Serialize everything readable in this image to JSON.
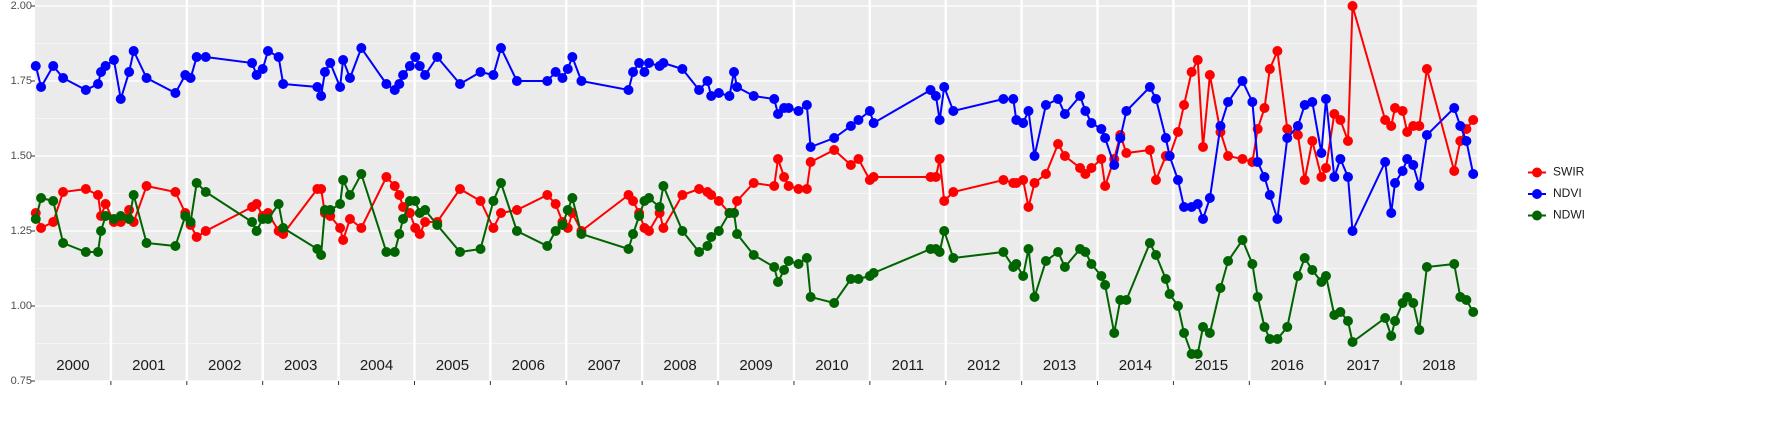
{
  "chart_data": {
    "type": "line",
    "xlim": [
      2000,
      2019
    ],
    "ylim": [
      0.75,
      2.0
    ],
    "yticks": [
      {
        "value": 0.75,
        "label": "0.75"
      },
      {
        "value": 1.0,
        "label": "1.00"
      },
      {
        "value": 1.25,
        "label": "1.25"
      },
      {
        "value": 1.5,
        "label": "1.50"
      },
      {
        "value": 1.75,
        "label": "1.75"
      },
      {
        "value": 2.0,
        "label": "2.00"
      }
    ],
    "xticks": [
      {
        "value": 2000.5,
        "label": "2000"
      },
      {
        "value": 2001.5,
        "label": "2001"
      },
      {
        "value": 2002.5,
        "label": "2002"
      },
      {
        "value": 2003.5,
        "label": "2003"
      },
      {
        "value": 2004.5,
        "label": "2004"
      },
      {
        "value": 2005.5,
        "label": "2005"
      },
      {
        "value": 2006.5,
        "label": "2006"
      },
      {
        "value": 2007.5,
        "label": "2007"
      },
      {
        "value": 2008.5,
        "label": "2008"
      },
      {
        "value": 2009.5,
        "label": "2009"
      },
      {
        "value": 2010.5,
        "label": "2010"
      },
      {
        "value": 2011.5,
        "label": "2011"
      },
      {
        "value": 2012.5,
        "label": "2012"
      },
      {
        "value": 2013.5,
        "label": "2013"
      },
      {
        "value": 2014.5,
        "label": "2014"
      },
      {
        "value": 2015.5,
        "label": "2015"
      },
      {
        "value": 2016.5,
        "label": "2016"
      },
      {
        "value": 2017.5,
        "label": "2017"
      },
      {
        "value": 2018.5,
        "label": "2018"
      }
    ],
    "vlines": [
      2001,
      2002,
      2003,
      2004,
      2005,
      2006,
      2007,
      2008,
      2009,
      2010,
      2011,
      2012,
      2013,
      2014,
      2015,
      2016,
      2017,
      2018
    ],
    "grid": true,
    "legend": "right",
    "x": [
      2000.01,
      2000.08,
      2000.24,
      2000.37,
      2000.67,
      2000.83,
      2000.87,
      2000.93,
      2001.04,
      2001.13,
      2001.24,
      2001.3,
      2001.47,
      2001.85,
      2001.98,
      2002.05,
      2002.13,
      2002.25,
      2002.86,
      2002.92,
      2003.0,
      2003.07,
      2003.21,
      2003.27,
      2003.72,
      2003.77,
      2003.82,
      2003.89,
      2004.02,
      2004.06,
      2004.15,
      2004.3,
      2004.63,
      2004.74,
      2004.8,
      2004.85,
      2004.94,
      2005.01,
      2005.07,
      2005.14,
      2005.3,
      2005.6,
      2005.87,
      2006.04,
      2006.14,
      2006.35,
      2006.75,
      2006.86,
      2006.95,
      2007.02,
      2007.08,
      2007.2,
      2007.82,
      2007.88,
      2007.96,
      2008.03,
      2008.09,
      2008.23,
      2008.28,
      2008.53,
      2008.75,
      2008.86,
      2008.91,
      2009.01,
      2009.15,
      2009.21,
      2009.25,
      2009.47,
      2009.74,
      2009.79,
      2009.87,
      2009.93,
      2010.06,
      2010.17,
      2010.22,
      2010.53,
      2010.75,
      2010.85,
      2011.0,
      2011.05,
      2011.8,
      2011.87,
      2011.92,
      2011.98,
      2012.1,
      2012.76,
      2012.89,
      2012.93,
      2013.02,
      2013.09,
      2013.17,
      2013.32,
      2013.48,
      2013.57,
      2013.77,
      2013.84,
      2013.92,
      2014.05,
      2014.1,
      2014.22,
      2014.3,
      2014.38,
      2014.69,
      2014.77,
      2014.9,
      2014.95,
      2015.06,
      2015.14,
      2015.24,
      2015.32,
      2015.39,
      2015.48,
      2015.62,
      2015.72,
      2015.91,
      2016.04,
      2016.11,
      2016.2,
      2016.27,
      2016.37,
      2016.5,
      2016.64,
      2016.73,
      2016.83,
      2016.95,
      2017.01,
      2017.12,
      2017.2,
      2017.3,
      2017.36,
      2017.79,
      2017.87,
      2017.92,
      2018.02,
      2018.08,
      2018.16,
      2018.24,
      2018.34,
      2018.7,
      2018.78,
      2018.86,
      2018.95
    ],
    "series": [
      {
        "name": "SWIR",
        "color": "#ff0000",
        "values": [
          1.31,
          1.26,
          1.28,
          1.38,
          1.39,
          1.37,
          1.3,
          1.34,
          1.28,
          1.28,
          1.32,
          1.28,
          1.4,
          1.38,
          1.31,
          1.27,
          1.23,
          1.25,
          1.33,
          1.34,
          1.3,
          1.31,
          1.25,
          1.24,
          1.39,
          1.39,
          1.31,
          1.3,
          1.26,
          1.22,
          1.29,
          1.26,
          1.43,
          1.4,
          1.37,
          1.33,
          1.31,
          1.26,
          1.24,
          1.28,
          1.28,
          1.39,
          1.35,
          1.26,
          1.31,
          1.32,
          1.37,
          1.34,
          1.28,
          1.26,
          1.31,
          1.25,
          1.37,
          1.35,
          1.31,
          1.26,
          1.25,
          1.31,
          1.26,
          1.37,
          1.39,
          1.38,
          1.37,
          1.35,
          1.31,
          1.31,
          1.35,
          1.41,
          1.4,
          1.49,
          1.43,
          1.4,
          1.39,
          1.39,
          1.48,
          1.52,
          1.47,
          1.49,
          1.42,
          1.43,
          1.43,
          1.43,
          1.49,
          1.35,
          1.38,
          1.42,
          1.41,
          1.41,
          1.42,
          1.33,
          1.41,
          1.44,
          1.54,
          1.5,
          1.46,
          1.44,
          1.46,
          1.49,
          1.4,
          1.49,
          1.57,
          1.51,
          1.52,
          1.42,
          1.5,
          1.5,
          1.58,
          1.67,
          1.78,
          1.82,
          1.53,
          1.77,
          1.58,
          1.5,
          1.49,
          1.48,
          1.59,
          1.66,
          1.79,
          1.85,
          1.59,
          1.57,
          1.42,
          1.55,
          1.43,
          1.46,
          1.64,
          1.62,
          1.55,
          2.0,
          1.62,
          1.6,
          1.66,
          1.65,
          1.58,
          1.6,
          1.6,
          1.79,
          1.45,
          1.55,
          1.59,
          1.62
        ]
      },
      {
        "name": "NDVI",
        "color": "#0000ff",
        "values": [
          1.8,
          1.73,
          1.8,
          1.76,
          1.72,
          1.74,
          1.78,
          1.8,
          1.82,
          1.69,
          1.78,
          1.85,
          1.76,
          1.71,
          1.77,
          1.76,
          1.83,
          1.83,
          1.81,
          1.77,
          1.79,
          1.85,
          1.83,
          1.74,
          1.73,
          1.7,
          1.78,
          1.81,
          1.73,
          1.82,
          1.76,
          1.86,
          1.74,
          1.72,
          1.74,
          1.77,
          1.8,
          1.83,
          1.8,
          1.77,
          1.83,
          1.74,
          1.78,
          1.77,
          1.86,
          1.75,
          1.75,
          1.78,
          1.76,
          1.79,
          1.83,
          1.75,
          1.72,
          1.78,
          1.81,
          1.78,
          1.81,
          1.8,
          1.81,
          1.79,
          1.72,
          1.75,
          1.7,
          1.71,
          1.7,
          1.78,
          1.73,
          1.7,
          1.69,
          1.64,
          1.66,
          1.66,
          1.65,
          1.67,
          1.53,
          1.56,
          1.6,
          1.62,
          1.65,
          1.61,
          1.72,
          1.7,
          1.62,
          1.73,
          1.65,
          1.69,
          1.69,
          1.62,
          1.61,
          1.65,
          1.5,
          1.67,
          1.69,
          1.64,
          1.7,
          1.65,
          1.61,
          1.59,
          1.56,
          1.47,
          1.56,
          1.65,
          1.73,
          1.69,
          1.56,
          1.5,
          1.42,
          1.33,
          1.33,
          1.34,
          1.29,
          1.36,
          1.6,
          1.68,
          1.75,
          1.68,
          1.48,
          1.43,
          1.37,
          1.29,
          1.56,
          1.6,
          1.67,
          1.68,
          1.51,
          1.69,
          1.43,
          1.49,
          1.43,
          1.25,
          1.48,
          1.31,
          1.41,
          1.45,
          1.49,
          1.47,
          1.4,
          1.57,
          1.66,
          1.6,
          1.55,
          1.44
        ]
      },
      {
        "name": "NDWI",
        "color": "#006400",
        "values": [
          1.29,
          1.36,
          1.35,
          1.21,
          1.18,
          1.18,
          1.25,
          1.3,
          1.29,
          1.3,
          1.29,
          1.37,
          1.21,
          1.2,
          1.3,
          1.28,
          1.41,
          1.38,
          1.28,
          1.25,
          1.29,
          1.29,
          1.34,
          1.26,
          1.19,
          1.17,
          1.32,
          1.32,
          1.34,
          1.42,
          1.37,
          1.44,
          1.18,
          1.18,
          1.24,
          1.29,
          1.35,
          1.35,
          1.31,
          1.32,
          1.27,
          1.18,
          1.19,
          1.35,
          1.41,
          1.25,
          1.2,
          1.25,
          1.27,
          1.32,
          1.36,
          1.24,
          1.19,
          1.24,
          1.3,
          1.35,
          1.36,
          1.33,
          1.4,
          1.25,
          1.18,
          1.2,
          1.23,
          1.25,
          1.31,
          1.31,
          1.24,
          1.17,
          1.13,
          1.08,
          1.12,
          1.15,
          1.14,
          1.16,
          1.03,
          1.01,
          1.09,
          1.09,
          1.1,
          1.11,
          1.19,
          1.19,
          1.18,
          1.25,
          1.16,
          1.18,
          1.13,
          1.14,
          1.1,
          1.19,
          1.03,
          1.15,
          1.18,
          1.13,
          1.19,
          1.18,
          1.14,
          1.1,
          1.07,
          0.91,
          1.02,
          1.02,
          1.21,
          1.17,
          1.09,
          1.04,
          1.0,
          0.91,
          0.84,
          0.84,
          0.93,
          0.91,
          1.06,
          1.15,
          1.22,
          1.14,
          1.03,
          0.93,
          0.89,
          0.89,
          0.93,
          1.1,
          1.16,
          1.12,
          1.08,
          1.1,
          0.97,
          0.98,
          0.95,
          0.88,
          0.96,
          0.9,
          0.95,
          1.01,
          1.03,
          1.01,
          0.92,
          1.13,
          1.14,
          1.03,
          1.02,
          0.98
        ]
      }
    ]
  }
}
